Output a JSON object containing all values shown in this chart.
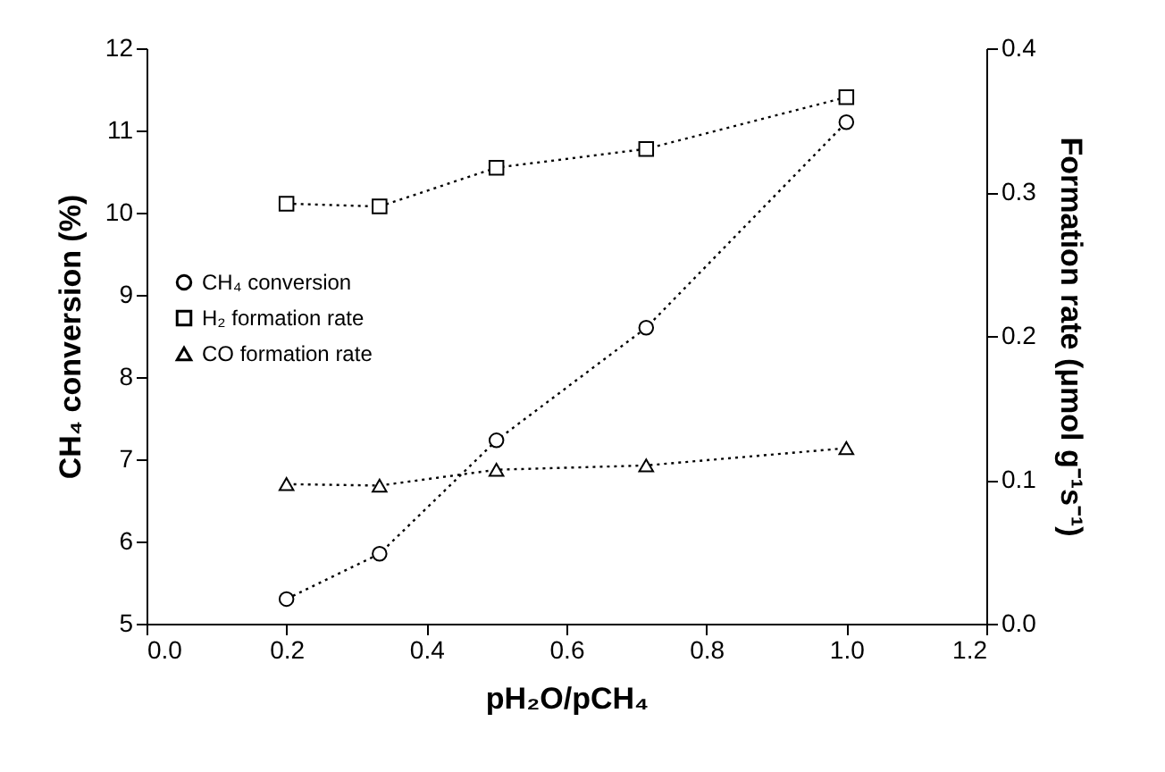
{
  "chart_data": {
    "type": "line",
    "xlabel": "pH₂O/pCH₄",
    "ylabel": "CH₄ conversion (%)",
    "y2label": "Formation rate (μmol g⁻¹s⁻¹)",
    "x": [
      0.2,
      0.333,
      0.5,
      0.714,
      1.0
    ],
    "series": [
      {
        "name": "CH₄ conversion",
        "color": "#000000",
        "marker": "circle",
        "values": [
          5.3,
          5.85,
          7.23,
          8.6,
          11.1
        ]
      },
      {
        "name": "H₂ formation rate",
        "color": "#000000",
        "marker": "square",
        "axis": "y2",
        "values": [
          0.292,
          0.29,
          0.317,
          0.33,
          0.366
        ]
      },
      {
        "name": "CO formation rate",
        "color": "#000000",
        "marker": "triangle",
        "axis": "y2",
        "values": [
          0.097,
          0.096,
          0.107,
          0.11,
          0.122
        ]
      }
    ],
    "line_style": "dotted",
    "legend": "center left",
    "grid": false,
    "xlim": [
      0,
      1.2
    ],
    "xticks": [
      {
        "value": 0,
        "label": "0.0"
      },
      {
        "value": 0.2,
        "label": "0.2"
      },
      {
        "value": 0.4,
        "label": "0.4"
      },
      {
        "value": 0.6,
        "label": "0.6"
      },
      {
        "value": 0.8,
        "label": "0.8"
      },
      {
        "value": 1,
        "label": "1.0"
      },
      {
        "value": 1.2,
        "label": "1.2"
      }
    ],
    "ylim": [
      5,
      12
    ],
    "yticks": [
      5,
      6,
      7,
      8,
      9,
      10,
      11,
      12
    ],
    "y2lim": [
      0,
      0.4
    ],
    "y2ticks": [
      {
        "value": 0,
        "label": "0.0"
      },
      0.1,
      0.2,
      0.3,
      0.4
    ]
  }
}
